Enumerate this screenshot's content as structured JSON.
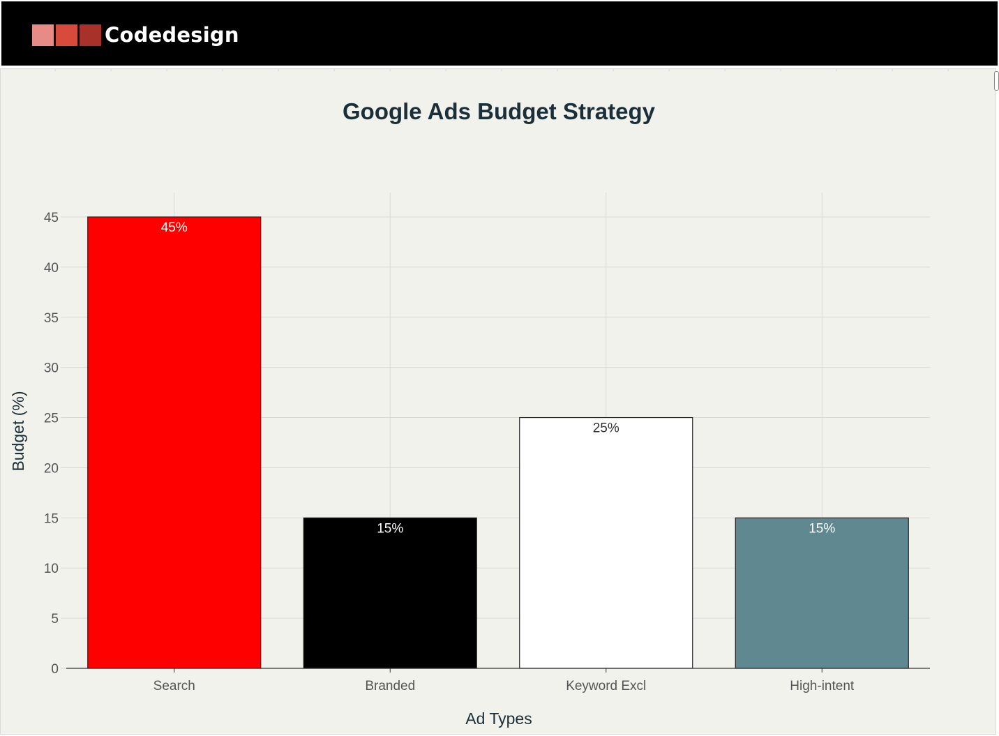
{
  "header": {
    "brand": "Codedesign",
    "logo_colors": [
      "#e88a86",
      "#d84a3c",
      "#a8312a"
    ]
  },
  "chart_data": {
    "type": "bar",
    "title": "Google Ads Budget Strategy",
    "xlabel": "Ad Types",
    "ylabel": "Budget (%)",
    "categories": [
      "Search",
      "Branded",
      "Keyword Excl",
      "High-intent"
    ],
    "values": [
      45,
      15,
      25,
      15
    ],
    "data_labels": [
      "45%",
      "15%",
      "25%",
      "15%"
    ],
    "colors": [
      "#ff0000",
      "#000000",
      "#ffffff",
      "#5f8890"
    ],
    "label_colors": [
      "#ffffff",
      "#ffffff",
      "#333333",
      "#ffffff"
    ],
    "ylim": [
      0,
      45
    ],
    "yticks": [
      0,
      5,
      10,
      15,
      20,
      25,
      30,
      35,
      40,
      45
    ],
    "grid": true,
    "legend": "none"
  }
}
